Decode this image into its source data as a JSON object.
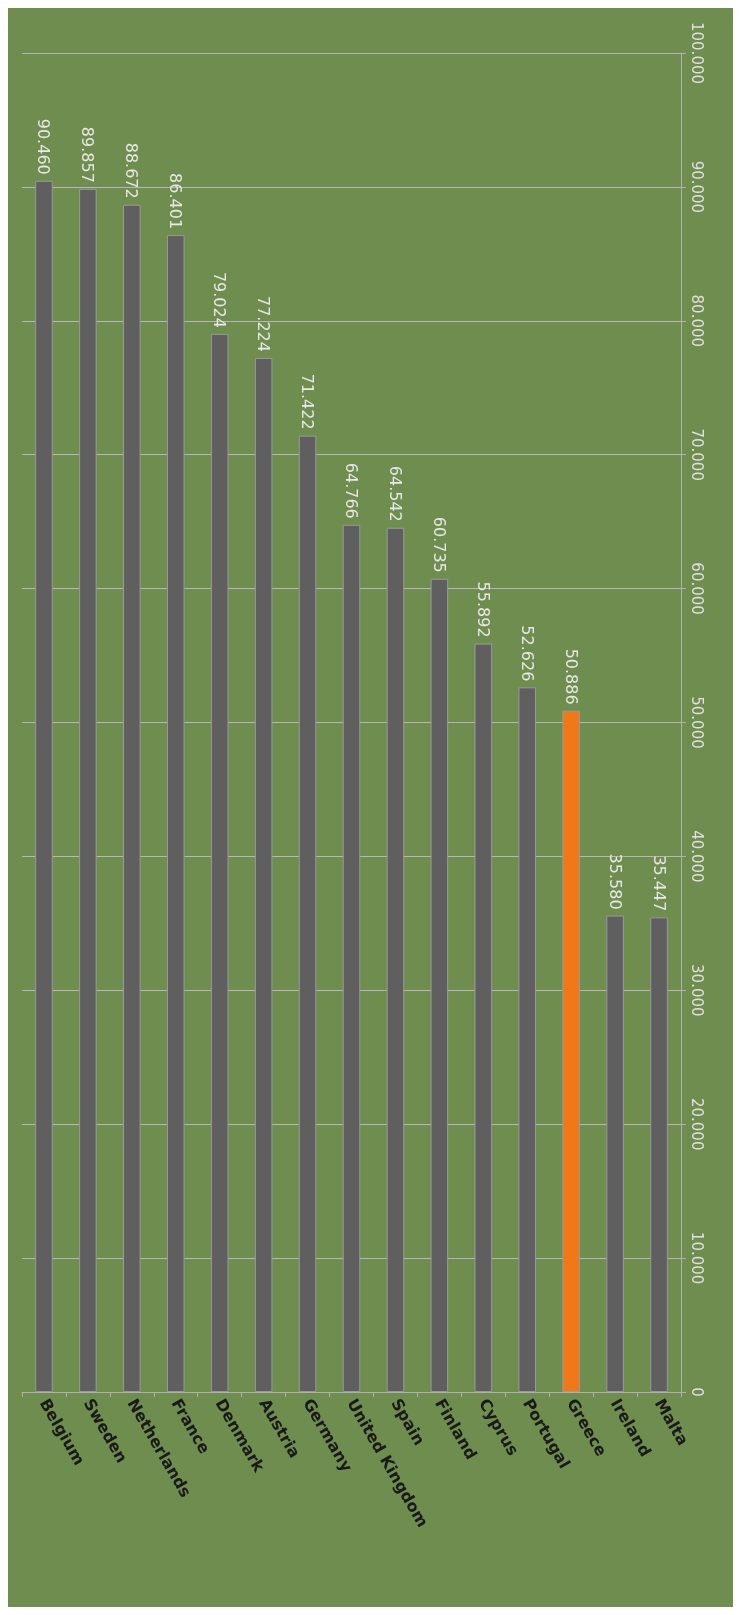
{
  "chart_data": {
    "type": "bar",
    "categories": [
      "Belgium",
      "Sweden",
      "Netherlands",
      "France",
      "Denmark",
      "Austria",
      "Germany",
      "United Kingdom",
      "Spain",
      "Finland",
      "Cyprus",
      "Portugal",
      "Greece",
      "Ireland",
      "Malta"
    ],
    "values": [
      90460,
      89857,
      88672,
      86401,
      79024,
      77224,
      71422,
      64766,
      64542,
      60735,
      55892,
      52626,
      50886,
      35580,
      35447
    ],
    "value_labels": [
      "90.460",
      "89.857",
      "88.672",
      "86.401",
      "79.024",
      "77.224",
      "71.422",
      "64.766",
      "64.542",
      "60.735",
      "55.892",
      "52.626",
      "50.886",
      "35.580",
      "35.447"
    ],
    "colors": [
      "#5f5f5f",
      "#5f5f5f",
      "#5f5f5f",
      "#5f5f5f",
      "#5f5f5f",
      "#5f5f5f",
      "#5f5f5f",
      "#5f5f5f",
      "#5f5f5f",
      "#5f5f5f",
      "#5f5f5f",
      "#5f5f5f",
      "#f07818",
      "#5f5f5f",
      "#5f5f5f"
    ],
    "ylim": [
      0,
      100000
    ],
    "yticks": [
      {
        "value": 0,
        "label": "0"
      },
      {
        "value": 10000,
        "label": "10.000"
      },
      {
        "value": 20000,
        "label": "20.000"
      },
      {
        "value": 30000,
        "label": "30.000"
      },
      {
        "value": 40000,
        "label": "40.000"
      },
      {
        "value": 50000,
        "label": "50.000"
      },
      {
        "value": 60000,
        "label": "60.000"
      },
      {
        "value": 70000,
        "label": "70.000"
      },
      {
        "value": 80000,
        "label": "80.000"
      },
      {
        "value": 90000,
        "label": "90.000"
      },
      {
        "value": 100000,
        "label": "100.000"
      }
    ],
    "grid": "y"
  }
}
